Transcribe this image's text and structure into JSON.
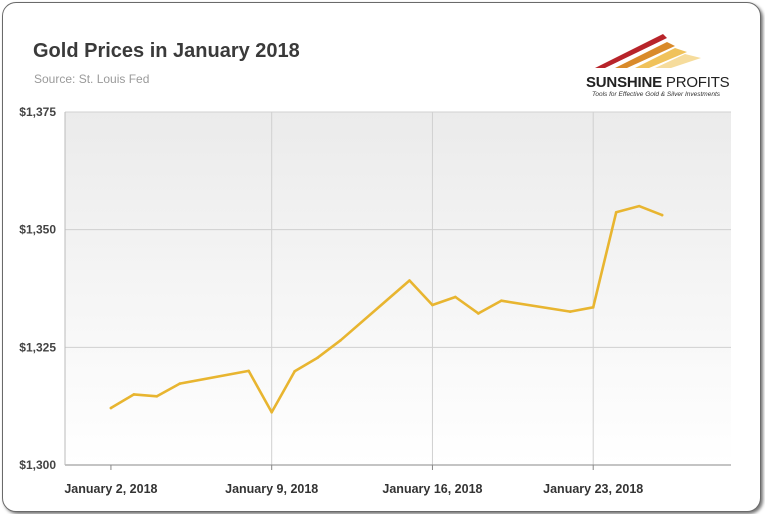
{
  "header": {
    "title": "Gold Prices in January 2018",
    "subtitle": "Source: St. Louis Fed"
  },
  "logo": {
    "name_bold": "SUNSHINE",
    "name_light": " PROFITS",
    "tagline": "Tools for Effective Gold & Silver Investments"
  },
  "colors": {
    "line": "#E8B530",
    "plot_top": "#ebebeb",
    "plot_bottom": "#ffffff",
    "grid": "#d0d0d0"
  },
  "chart_data": {
    "type": "line",
    "title": "Gold Prices in January 2018",
    "subtitle": "Source: St. Louis Fed",
    "xlabel": "",
    "ylabel": "",
    "x_ticks": [
      "January 2, 2018",
      "January 9, 2018",
      "January 16, 2018",
      "January 23, 2018"
    ],
    "y_ticks": [
      "$1,300",
      "$1,325",
      "$1,350",
      "$1,375"
    ],
    "ylim": [
      1300,
      1375
    ],
    "xlim": [
      "2017-12-31",
      "2018-01-29"
    ],
    "grid": true,
    "series": [
      {
        "values": [
          {
            "x": "2018-01-02",
            "y": 1312.1
          },
          {
            "x": "2018-01-03",
            "y": 1315.0
          },
          {
            "x": "2018-01-04",
            "y": 1314.6
          },
          {
            "x": "2018-01-05",
            "y": 1317.3
          },
          {
            "x": "2018-01-08",
            "y": 1320.0
          },
          {
            "x": "2018-01-09",
            "y": 1311.2
          },
          {
            "x": "2018-01-10",
            "y": 1319.9
          },
          {
            "x": "2018-01-11",
            "y": 1322.8
          },
          {
            "x": "2018-01-12",
            "y": 1326.5
          },
          {
            "x": "2018-01-15",
            "y": 1339.2
          },
          {
            "x": "2018-01-16",
            "y": 1334.0
          },
          {
            "x": "2018-01-17",
            "y": 1335.7
          },
          {
            "x": "2018-01-18",
            "y": 1332.2
          },
          {
            "x": "2018-01-19",
            "y": 1334.9
          },
          {
            "x": "2018-01-22",
            "y": 1332.6
          },
          {
            "x": "2018-01-23",
            "y": 1333.5
          },
          {
            "x": "2018-01-24",
            "y": 1353.7
          },
          {
            "x": "2018-01-25",
            "y": 1355.0
          },
          {
            "x": "2018-01-26",
            "y": 1353.1
          }
        ]
      }
    ]
  }
}
